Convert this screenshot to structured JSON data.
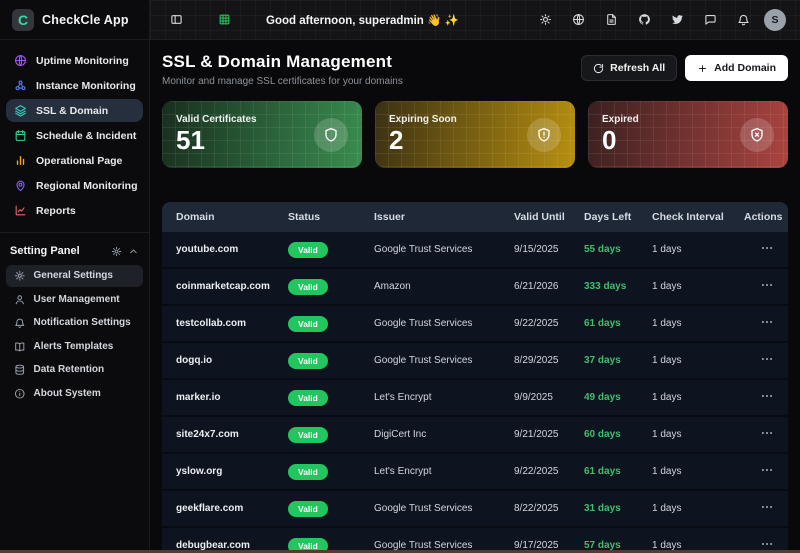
{
  "app": {
    "name": "CheckCle App",
    "logo_letter": "C"
  },
  "topbar": {
    "greeting": "Good afternoon, superadmin 👋 ✨",
    "avatar_initial": "S",
    "left_icons": [
      "panel-toggle",
      "grid"
    ],
    "right_icons": [
      "sun",
      "globe",
      "document",
      "github",
      "twitter",
      "chat",
      "bell"
    ]
  },
  "sidebar": {
    "nav": [
      {
        "label": "Uptime Monitoring",
        "icon": "globe",
        "color": "#a855f7",
        "active": false
      },
      {
        "label": "Instance Monitoring",
        "icon": "cluster",
        "color": "#5b7cfa",
        "active": false
      },
      {
        "label": "SSL & Domain",
        "icon": "layers",
        "color": "#2dd4bf",
        "active": true
      },
      {
        "label": "Schedule & Incident",
        "icon": "calendar",
        "color": "#34d399",
        "active": false
      },
      {
        "label": "Operational Page",
        "icon": "bar-chart",
        "color": "#f5a524",
        "active": false
      },
      {
        "label": "Regional Monitoring",
        "icon": "map-pin",
        "color": "#8b5cf6",
        "active": false
      },
      {
        "label": "Reports",
        "icon": "line-chart",
        "color": "#f4606e",
        "active": false
      }
    ],
    "settings_title": "Setting Panel",
    "settings": [
      {
        "label": "General Settings",
        "icon": "gear",
        "active": true
      },
      {
        "label": "User Management",
        "icon": "person",
        "active": false
      },
      {
        "label": "Notification Settings",
        "icon": "bell",
        "active": false
      },
      {
        "label": "Alerts Templates",
        "icon": "book",
        "active": false
      },
      {
        "label": "Data Retention",
        "icon": "database",
        "active": false
      },
      {
        "label": "About System",
        "icon": "info",
        "active": false
      }
    ]
  },
  "page": {
    "title": "SSL & Domain Management",
    "subtitle": "Monitor and manage SSL certificates for your domains",
    "refresh_label": "Refresh All",
    "add_label": "Add Domain"
  },
  "stats": [
    {
      "label": "Valid Certificates",
      "value": "51",
      "icon": "shield",
      "gradient_from": "#182e1f",
      "gradient_to": "#3a8d4f"
    },
    {
      "label": "Expiring Soon",
      "value": "2",
      "icon": "shield-alert",
      "gradient_from": "#3a3013",
      "gradient_to": "#b8900f"
    },
    {
      "label": "Expired",
      "value": "0",
      "icon": "shield-x",
      "gradient_from": "#3a2020",
      "gradient_to": "#ab4440"
    }
  ],
  "table": {
    "columns": [
      "Domain",
      "Status",
      "Issuer",
      "Valid Until",
      "Days Left",
      "Check Interval",
      "Actions"
    ],
    "rows": [
      {
        "domain": "youtube.com",
        "status": "Valid",
        "issuer": "Google Trust Services",
        "valid_until": "9/15/2025",
        "days_left": "55 days",
        "check_interval": "1 days"
      },
      {
        "domain": "coinmarketcap.com",
        "status": "Valid",
        "issuer": "Amazon",
        "valid_until": "6/21/2026",
        "days_left": "333 days",
        "check_interval": "1 days"
      },
      {
        "domain": "testcollab.com",
        "status": "Valid",
        "issuer": "Google Trust Services",
        "valid_until": "9/22/2025",
        "days_left": "61 days",
        "check_interval": "1 days"
      },
      {
        "domain": "dogq.io",
        "status": "Valid",
        "issuer": "Google Trust Services",
        "valid_until": "8/29/2025",
        "days_left": "37 days",
        "check_interval": "1 days"
      },
      {
        "domain": "marker.io",
        "status": "Valid",
        "issuer": "Let's Encrypt",
        "valid_until": "9/9/2025",
        "days_left": "49 days",
        "check_interval": "1 days"
      },
      {
        "domain": "site24x7.com",
        "status": "Valid",
        "issuer": "DigiCert Inc",
        "valid_until": "9/21/2025",
        "days_left": "60 days",
        "check_interval": "1 days"
      },
      {
        "domain": "yslow.org",
        "status": "Valid",
        "issuer": "Let's Encrypt",
        "valid_until": "9/22/2025",
        "days_left": "61 days",
        "check_interval": "1 days"
      },
      {
        "domain": "geekflare.com",
        "status": "Valid",
        "issuer": "Google Trust Services",
        "valid_until": "8/22/2025",
        "days_left": "31 days",
        "check_interval": "1 days"
      },
      {
        "domain": "debugbear.com",
        "status": "Valid",
        "issuer": "Google Trust Services",
        "valid_until": "9/17/2025",
        "days_left": "57 days",
        "check_interval": "1 days"
      }
    ]
  },
  "colors": {
    "accent_teal": "#2dd4bf",
    "valid_green": "#22c55e",
    "days_green": "#3ebf6e",
    "table_header_bg": "#1e2836",
    "row_bg": "#0d141f",
    "sidebar_bg": "#0b0b0d"
  }
}
